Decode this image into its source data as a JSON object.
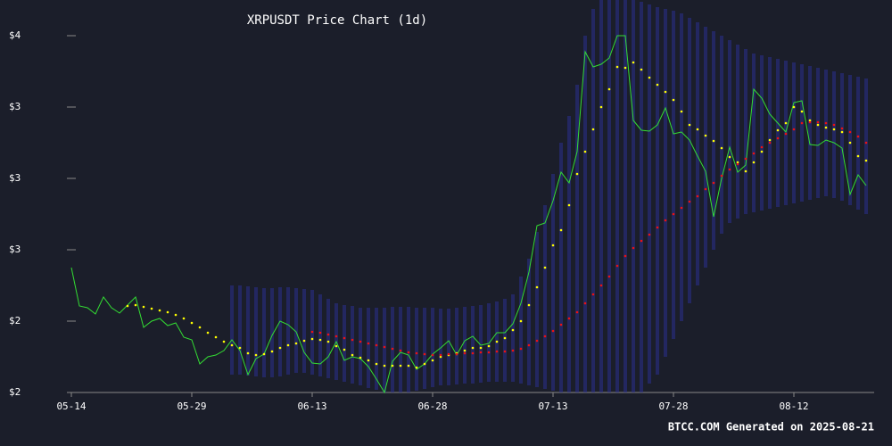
{
  "chart_data": {
    "type": "line",
    "title": "XRPUSDT Price Chart (1d)",
    "footer": "BTCC.COM Generated on 2025-08-21",
    "background": "#1b1e2a",
    "categories": [
      "05-14",
      null,
      null,
      null,
      null,
      null,
      null,
      null,
      null,
      null,
      null,
      null,
      null,
      null,
      null,
      "05-29",
      null,
      null,
      null,
      null,
      null,
      null,
      null,
      null,
      null,
      null,
      null,
      null,
      null,
      null,
      "06-13",
      null,
      null,
      null,
      null,
      null,
      null,
      null,
      null,
      null,
      null,
      null,
      null,
      null,
      null,
      "06-28",
      null,
      null,
      null,
      null,
      null,
      null,
      null,
      null,
      null,
      null,
      null,
      null,
      null,
      null,
      "07-13",
      null,
      null,
      null,
      null,
      null,
      null,
      null,
      null,
      null,
      null,
      null,
      null,
      null,
      null,
      "07-28",
      null,
      null,
      null,
      null,
      null,
      null,
      null,
      null,
      null,
      null,
      null,
      null,
      null,
      null,
      "08-12",
      null,
      null,
      null,
      null,
      null,
      null,
      null,
      null,
      null
    ],
    "ylim": [
      1.8,
      4.0
    ],
    "yticks": [
      {
        "value": 1.8,
        "label": "$2"
      },
      {
        "value": 2.2,
        "label": "$2"
      },
      {
        "value": 2.6,
        "label": "$3"
      },
      {
        "value": 3.0,
        "label": "$3"
      },
      {
        "value": 3.4,
        "label": "$3"
      },
      {
        "value": 3.8,
        "label": "$4"
      }
    ],
    "band": {
      "color": "#2b2f8f",
      "upper": [
        null,
        null,
        null,
        null,
        null,
        null,
        null,
        null,
        null,
        null,
        null,
        null,
        null,
        null,
        null,
        null,
        null,
        null,
        null,
        null,
        2.4,
        2.4,
        2.395,
        2.39,
        2.385,
        2.385,
        2.39,
        2.39,
        2.385,
        2.38,
        2.375,
        2.35,
        2.325,
        2.3,
        2.29,
        2.285,
        2.275,
        2.275,
        2.275,
        2.275,
        2.28,
        2.28,
        2.28,
        2.275,
        2.275,
        2.275,
        2.27,
        2.27,
        2.275,
        2.28,
        2.285,
        2.29,
        2.3,
        2.31,
        2.325,
        2.35,
        2.45,
        2.55,
        2.7,
        2.85,
        3.025,
        3.2,
        3.35,
        3.525,
        3.8,
        3.95,
        4.0,
        4.0,
        4.0,
        4.0,
        4.0,
        3.99,
        3.975,
        3.96,
        3.95,
        3.94,
        3.925,
        3.9,
        3.875,
        3.85,
        3.825,
        3.8,
        3.775,
        3.75,
        3.725,
        3.7,
        3.69,
        3.68,
        3.67,
        3.66,
        3.65,
        3.64,
        3.63,
        3.62,
        3.61,
        3.6,
        3.59,
        3.58,
        3.57,
        3.56
      ],
      "lower": [
        null,
        null,
        null,
        null,
        null,
        null,
        null,
        null,
        null,
        null,
        null,
        null,
        null,
        null,
        null,
        null,
        null,
        null,
        null,
        null,
        1.9,
        1.9,
        1.895,
        1.89,
        1.885,
        1.885,
        1.89,
        1.9,
        1.91,
        1.91,
        1.9,
        1.89,
        1.88,
        1.87,
        1.86,
        1.85,
        1.84,
        1.825,
        1.815,
        1.8,
        1.8,
        1.8,
        1.8,
        1.81,
        1.82,
        1.83,
        1.84,
        1.84,
        1.845,
        1.85,
        1.85,
        1.855,
        1.86,
        1.86,
        1.86,
        1.86,
        1.85,
        1.84,
        1.83,
        1.82,
        1.81,
        1.8,
        1.8,
        1.8,
        1.8,
        1.8,
        1.8,
        1.8,
        1.8,
        1.8,
        1.8,
        1.8,
        1.85,
        1.9,
        2.0,
        2.1,
        2.2,
        2.3,
        2.4,
        2.5,
        2.6,
        2.69,
        2.75,
        2.775,
        2.8,
        2.81,
        2.82,
        2.83,
        2.84,
        2.85,
        2.86,
        2.87,
        2.88,
        2.89,
        2.9,
        2.89,
        2.875,
        2.85,
        2.825,
        2.8
      ]
    },
    "series": [
      {
        "color": "#33dd33",
        "marker": "line",
        "values": [
          2.5,
          2.285,
          2.275,
          2.24,
          2.335,
          2.275,
          2.245,
          2.29,
          2.335,
          2.165,
          2.2,
          2.215,
          2.175,
          2.19,
          2.11,
          2.095,
          1.96,
          2.0,
          2.01,
          2.035,
          2.095,
          2.035,
          1.9,
          1.99,
          2.015,
          2.12,
          2.2,
          2.18,
          2.14,
          2.025,
          1.965,
          1.96,
          2.0,
          2.085,
          1.98,
          2.0,
          1.99,
          1.945,
          1.875,
          1.8,
          1.975,
          2.025,
          2.01,
          1.93,
          1.96,
          2.015,
          2.05,
          2.09,
          2.01,
          2.09,
          2.115,
          2.065,
          2.075,
          2.135,
          2.135,
          2.185,
          2.3,
          2.475,
          2.735,
          2.75,
          2.875,
          3.035,
          2.975,
          3.15,
          3.71,
          3.625,
          3.64,
          3.675,
          3.8,
          3.8,
          3.325,
          3.27,
          3.265,
          3.3,
          3.395,
          3.25,
          3.26,
          3.215,
          3.125,
          3.04,
          2.785,
          3.0,
          3.175,
          3.035,
          3.075,
          3.5,
          3.45,
          3.36,
          3.31,
          3.26,
          3.425,
          3.435,
          3.19,
          3.185,
          3.215,
          3.2,
          3.17,
          2.91,
          3.02,
          2.96
        ]
      },
      {
        "color": "#ffff00",
        "marker": "dot",
        "values": [
          null,
          null,
          null,
          null,
          null,
          null,
          null,
          2.285,
          2.29,
          2.28,
          2.27,
          2.26,
          2.25,
          2.235,
          2.215,
          2.19,
          2.165,
          2.135,
          2.11,
          2.085,
          2.065,
          2.05,
          2.02,
          2.01,
          2.015,
          2.03,
          2.05,
          2.065,
          2.075,
          2.09,
          2.1,
          2.095,
          2.085,
          2.06,
          2.04,
          2.01,
          1.995,
          1.98,
          1.96,
          1.95,
          1.95,
          1.95,
          1.95,
          1.94,
          1.96,
          1.98,
          2.0,
          2.01,
          2.02,
          2.035,
          2.05,
          2.05,
          2.06,
          2.085,
          2.105,
          2.15,
          2.2,
          2.29,
          2.39,
          2.5,
          2.625,
          2.71,
          2.85,
          3.025,
          3.15,
          3.275,
          3.4,
          3.5,
          3.625,
          3.62,
          3.65,
          3.61,
          3.565,
          3.525,
          3.485,
          3.44,
          3.375,
          3.3,
          3.275,
          3.24,
          3.21,
          3.17,
          3.12,
          3.09,
          3.04,
          3.09,
          3.15,
          3.215,
          3.27,
          3.31,
          3.4,
          3.375,
          3.325,
          3.3,
          3.285,
          3.275,
          3.26,
          3.2,
          3.125,
          3.1
        ]
      },
      {
        "color": "#ee1111",
        "marker": "dot",
        "values": [
          null,
          null,
          null,
          null,
          null,
          null,
          null,
          null,
          null,
          null,
          null,
          null,
          null,
          null,
          null,
          null,
          null,
          null,
          null,
          null,
          null,
          null,
          null,
          null,
          null,
          null,
          null,
          null,
          null,
          null,
          2.14,
          2.135,
          2.125,
          2.115,
          2.105,
          2.095,
          2.085,
          2.075,
          2.065,
          2.055,
          2.045,
          2.035,
          2.025,
          2.02,
          2.015,
          2.01,
          2.01,
          2.015,
          2.015,
          2.02,
          2.02,
          2.025,
          2.025,
          2.03,
          2.03,
          2.035,
          2.045,
          2.065,
          2.09,
          2.115,
          2.145,
          2.18,
          2.215,
          2.25,
          2.3,
          2.35,
          2.4,
          2.45,
          2.51,
          2.565,
          2.61,
          2.65,
          2.685,
          2.725,
          2.765,
          2.8,
          2.835,
          2.87,
          2.9,
          2.94,
          2.975,
          3.015,
          3.05,
          3.08,
          3.11,
          3.14,
          3.175,
          3.2,
          3.225,
          3.25,
          3.275,
          3.31,
          3.315,
          3.315,
          3.31,
          3.3,
          3.28,
          3.26,
          3.235,
          3.2
        ]
      }
    ]
  }
}
